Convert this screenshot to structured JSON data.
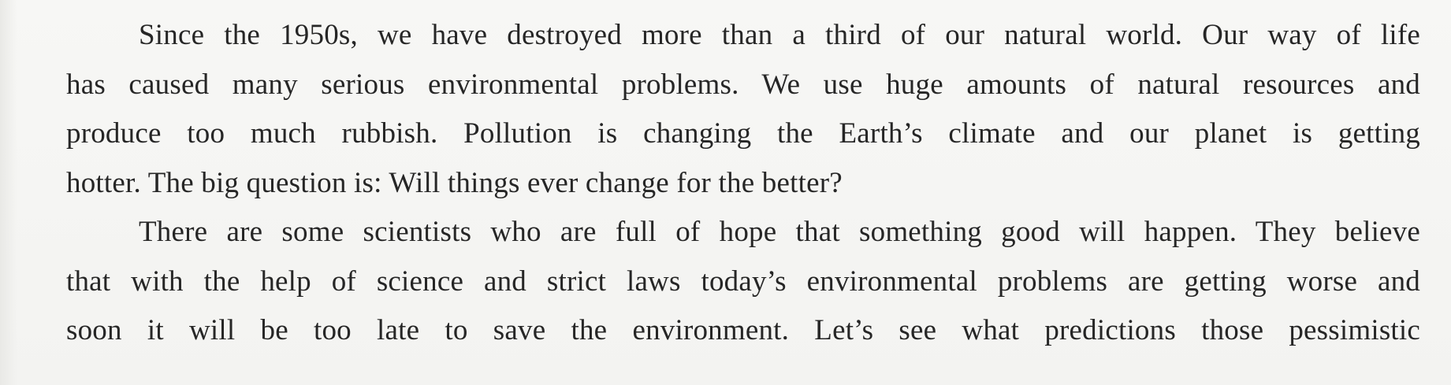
{
  "document": {
    "paragraphs": [
      {
        "lines": [
          "Since the 1950s, we have destroyed more than a third of our natural world. Our way of life",
          "has caused many serious environmental problems. We use huge amounts of natural resources and",
          "produce too much rubbish. Pollution is changing the Earth’s climate and our planet is getting",
          "hotter. The big question is: Will things ever change for the better?"
        ]
      },
      {
        "lines": [
          "There are some scientists who are full of hope that something good will happen. They believe",
          "that with the help of science and strict laws today’s environmental problems are getting worse and",
          "soon it will be too late to save the environment. Let’s see what predictions those pessimistic"
        ]
      }
    ]
  }
}
